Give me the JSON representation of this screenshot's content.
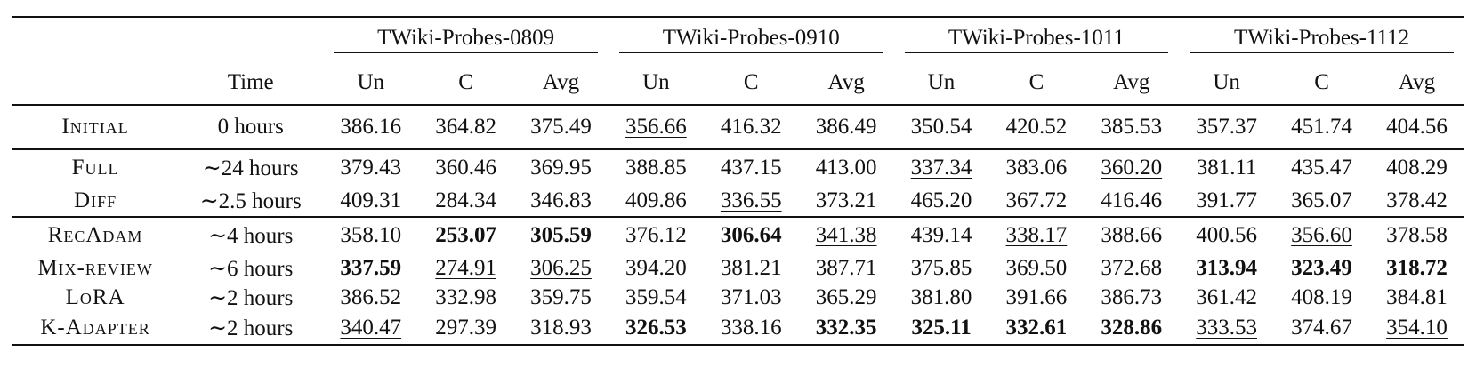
{
  "header": {
    "time_label": "Time",
    "groups": [
      "TWiki-Probes-0809",
      "TWiki-Probes-0910",
      "TWiki-Probes-1011",
      "TWiki-Probes-1112"
    ],
    "subcols": [
      "Un",
      "C",
      "Avg"
    ]
  },
  "rows": [
    {
      "method": "Initial",
      "time": "0 hours",
      "values": [
        "386.16",
        "364.82",
        "375.49",
        "356.66",
        "416.32",
        "386.49",
        "350.54",
        "420.52",
        "385.53",
        "357.37",
        "451.74",
        "404.56"
      ],
      "bold": [],
      "underline": [
        3
      ]
    },
    {
      "method": "Full",
      "time": "∼24 hours",
      "values": [
        "379.43",
        "360.46",
        "369.95",
        "388.85",
        "437.15",
        "413.00",
        "337.34",
        "383.06",
        "360.20",
        "381.11",
        "435.47",
        "408.29"
      ],
      "bold": [],
      "underline": [
        6,
        8
      ]
    },
    {
      "method": "Diff",
      "time": "∼2.5 hours",
      "values": [
        "409.31",
        "284.34",
        "346.83",
        "409.86",
        "336.55",
        "373.21",
        "465.20",
        "367.72",
        "416.46",
        "391.77",
        "365.07",
        "378.42"
      ],
      "bold": [],
      "underline": [
        4
      ]
    },
    {
      "method": "RecAdam",
      "time": "∼4 hours",
      "values": [
        "358.10",
        "253.07",
        "305.59",
        "376.12",
        "306.64",
        "341.38",
        "439.14",
        "338.17",
        "388.66",
        "400.56",
        "356.60",
        "378.58"
      ],
      "bold": [
        1,
        2,
        4
      ],
      "underline": [
        5,
        7,
        10
      ]
    },
    {
      "method": "Mix-review",
      "time": "∼6 hours",
      "values": [
        "337.59",
        "274.91",
        "306.25",
        "394.20",
        "381.21",
        "387.71",
        "375.85",
        "369.50",
        "372.68",
        "313.94",
        "323.49",
        "318.72"
      ],
      "bold": [
        0,
        9,
        10,
        11
      ],
      "underline": [
        1,
        2
      ]
    },
    {
      "method": "LoRA",
      "time": "∼2 hours",
      "values": [
        "386.52",
        "332.98",
        "359.75",
        "359.54",
        "371.03",
        "365.29",
        "381.80",
        "391.66",
        "386.73",
        "361.42",
        "408.19",
        "384.81"
      ],
      "bold": [],
      "underline": []
    },
    {
      "method": "K-Adapter",
      "time": "∼2 hours",
      "values": [
        "340.47",
        "297.39",
        "318.93",
        "326.53",
        "338.16",
        "332.35",
        "325.11",
        "332.61",
        "328.86",
        "333.53",
        "374.67",
        "354.10"
      ],
      "bold": [
        3,
        5,
        6,
        7,
        8
      ],
      "underline": [
        0,
        9,
        11
      ]
    }
  ]
}
